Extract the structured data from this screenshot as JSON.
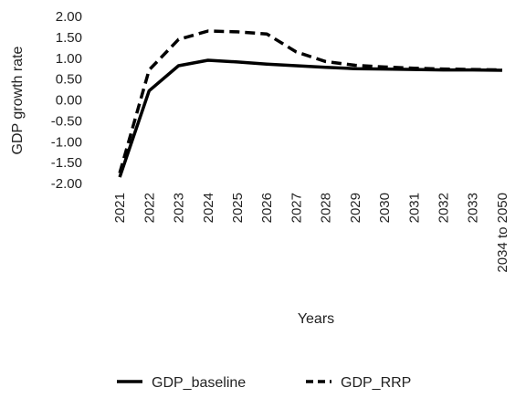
{
  "chart_data": {
    "type": "line",
    "title": "",
    "xlabel": "Years",
    "ylabel": "GDP growth rate",
    "ylim": [
      -2.0,
      2.0
    ],
    "yticks": [
      "2.00",
      "1.50",
      "1.00",
      "0.50",
      "0.00",
      "-0.50",
      "-1.00",
      "-1.50",
      "-2.00"
    ],
    "categories": [
      "2021",
      "2022",
      "2023",
      "2024",
      "2025",
      "2026",
      "2027",
      "2028",
      "2029",
      "2030",
      "2031",
      "2032",
      "2033",
      "2034 to 2050"
    ],
    "grid": false,
    "legend_position": "bottom",
    "series": [
      {
        "name": "GDP_baseline",
        "style": "solid",
        "color": "#000000",
        "values": [
          -1.85,
          0.22,
          0.82,
          0.95,
          0.91,
          0.86,
          0.82,
          0.78,
          0.75,
          0.74,
          0.73,
          0.72,
          0.72,
          0.71
        ]
      },
      {
        "name": "GDP_RRP",
        "style": "dashed",
        "color": "#000000",
        "values": [
          -1.75,
          0.72,
          1.45,
          1.65,
          1.63,
          1.58,
          1.15,
          0.92,
          0.83,
          0.79,
          0.76,
          0.74,
          0.73,
          0.72
        ]
      }
    ]
  }
}
